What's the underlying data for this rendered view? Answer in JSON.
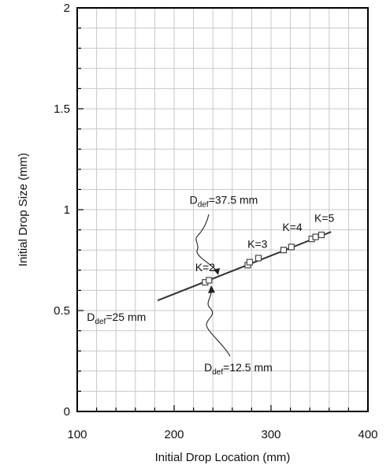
{
  "chart_data": {
    "type": "scatter",
    "xlabel": "Initial Drop Location (mm)",
    "ylabel": "Initial Drop Size (mm)",
    "xlim": [
      100,
      400
    ],
    "ylim": [
      0,
      2
    ],
    "x_ticks": [
      100,
      200,
      300,
      400
    ],
    "x_tick_labels": [
      "100",
      "200",
      "300",
      "400"
    ],
    "y_ticks": [
      0,
      0.5,
      1,
      1.5,
      2
    ],
    "y_tick_labels": [
      "0",
      "0.5",
      "1",
      "1.5",
      "2"
    ],
    "x_minor_step": 20,
    "y_minor_step": 0.1,
    "grid": true,
    "legend": "none",
    "series": [
      {
        "marker": "square",
        "x": [
          232,
          236,
          276,
          278,
          287,
          313,
          321,
          342,
          346,
          352
        ],
        "y": [
          0.64,
          0.65,
          0.725,
          0.74,
          0.76,
          0.8,
          0.815,
          0.855,
          0.865,
          0.875
        ]
      }
    ],
    "fit_line": {
      "x": [
        183,
        362
      ],
      "y": [
        0.55,
        0.89
      ]
    },
    "annotations": [
      {
        "text": "K=2",
        "x": 232,
        "y": 0.695
      },
      {
        "text": "K=3",
        "x": 286,
        "y": 0.81
      },
      {
        "text": "K=4",
        "x": 322,
        "y": 0.895
      },
      {
        "text": "K=5",
        "x": 355,
        "y": 0.94
      }
    ],
    "callouts": [
      {
        "main": "D",
        "sub": "def",
        "rest": "=37.5 mm",
        "x": 216,
        "y": 1.03
      },
      {
        "main": "D",
        "sub": "def",
        "rest": "=25 mm",
        "x": 110,
        "y": 0.45
      },
      {
        "main": "D",
        "sub": "def",
        "rest": "=12.5 mm",
        "x": 231,
        "y": 0.2
      }
    ]
  }
}
